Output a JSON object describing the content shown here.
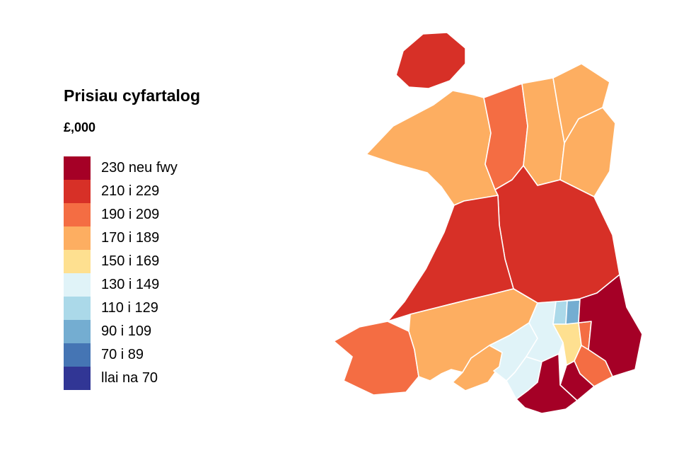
{
  "page": {
    "background_color": "#ffffff"
  },
  "legend": {
    "title": "Prisiau cyfartalog",
    "subtitle": "£,000",
    "items": [
      {
        "label": "230 neu fwy",
        "color": "#a50026"
      },
      {
        "label": "210 i 229",
        "color": "#d73027"
      },
      {
        "label": "190 i 209",
        "color": "#f46d43"
      },
      {
        "label": "170 i 189",
        "color": "#fdae61"
      },
      {
        "label": "150 i 169",
        "color": "#fee090"
      },
      {
        "label": "130 i 149",
        "color": "#e0f3f8"
      },
      {
        "label": "110 i 129",
        "color": "#abd9e9"
      },
      {
        "label": "90 i 109",
        "color": "#74add1"
      },
      {
        "label": "70 i 89",
        "color": "#4575b4"
      },
      {
        "label": "llai na 70",
        "color": "#313695"
      }
    ]
  },
  "chart_data": {
    "type": "heatmap",
    "subtype": "choropleth-map",
    "title": "Prisiau cyfartalog",
    "units_label": "£,000",
    "legend_position": "left",
    "bands": [
      {
        "label": "230 neu fwy",
        "color": "#a50026"
      },
      {
        "label": "210 i 229",
        "color": "#d73027"
      },
      {
        "label": "190 i 209",
        "color": "#f46d43"
      },
      {
        "label": "170 i 189",
        "color": "#fdae61"
      },
      {
        "label": "150 i 169",
        "color": "#fee090"
      },
      {
        "label": "130 i 149",
        "color": "#e0f3f8"
      },
      {
        "label": "110 i 129",
        "color": "#abd9e9"
      },
      {
        "label": "90 i 109",
        "color": "#74add1"
      },
      {
        "label": "70 i 89",
        "color": "#4575b4"
      },
      {
        "label": "llai na 70",
        "color": "#313695"
      }
    ],
    "regions": [
      {
        "id": "ynys-mon",
        "name": "Ynys Môn",
        "band": "210 i 229"
      },
      {
        "id": "gwynedd",
        "name": "Gwynedd",
        "band": "170 i 189"
      },
      {
        "id": "conwy",
        "name": "Conwy",
        "band": "190 i 209"
      },
      {
        "id": "sir-ddinbych",
        "name": "Sir Ddinbych",
        "band": "170 i 189"
      },
      {
        "id": "sir-y-fflint",
        "name": "Sir y Fflint",
        "band": "170 i 189"
      },
      {
        "id": "wrecsam",
        "name": "Wrecsam",
        "band": "170 i 189"
      },
      {
        "id": "powys",
        "name": "Powys",
        "band": "210 i 229"
      },
      {
        "id": "ceredigion",
        "name": "Ceredigion",
        "band": "210 i 229"
      },
      {
        "id": "sir-benfro",
        "name": "Sir Benfro",
        "band": "190 i 209"
      },
      {
        "id": "sir-gaerfyrddin",
        "name": "Sir Gaerfyrddin",
        "band": "170 i 189"
      },
      {
        "id": "abertawe",
        "name": "Abertawe",
        "band": "170 i 189"
      },
      {
        "id": "castell-nedd-port-talbot",
        "name": "Castell-nedd Port Talbot",
        "band": "130 i 149"
      },
      {
        "id": "pen-y-bont",
        "name": "Pen-y-bont ar Ogwr",
        "band": "130 i 149"
      },
      {
        "id": "rhondda-cynon-taf",
        "name": "Rhondda Cynon Taf",
        "band": "130 i 149"
      },
      {
        "id": "merthyr-tudful",
        "name": "Merthyr Tudful",
        "band": "110 i 129"
      },
      {
        "id": "caerffili",
        "name": "Caerffili",
        "band": "150 i 169"
      },
      {
        "id": "blaenau-gwent",
        "name": "Blaenau Gwent",
        "band": "90 i 109"
      },
      {
        "id": "torfaen",
        "name": "Torfaen",
        "band": "190 i 209"
      },
      {
        "id": "sir-fynwy",
        "name": "Sir Fynwy",
        "band": "230 neu fwy"
      },
      {
        "id": "casnewydd",
        "name": "Casnewydd",
        "band": "190 i 209"
      },
      {
        "id": "caerdydd",
        "name": "Caerdydd",
        "band": "230 neu fwy"
      },
      {
        "id": "bro-morgannwg",
        "name": "Bro Morgannwg",
        "band": "230 neu fwy"
      }
    ]
  }
}
